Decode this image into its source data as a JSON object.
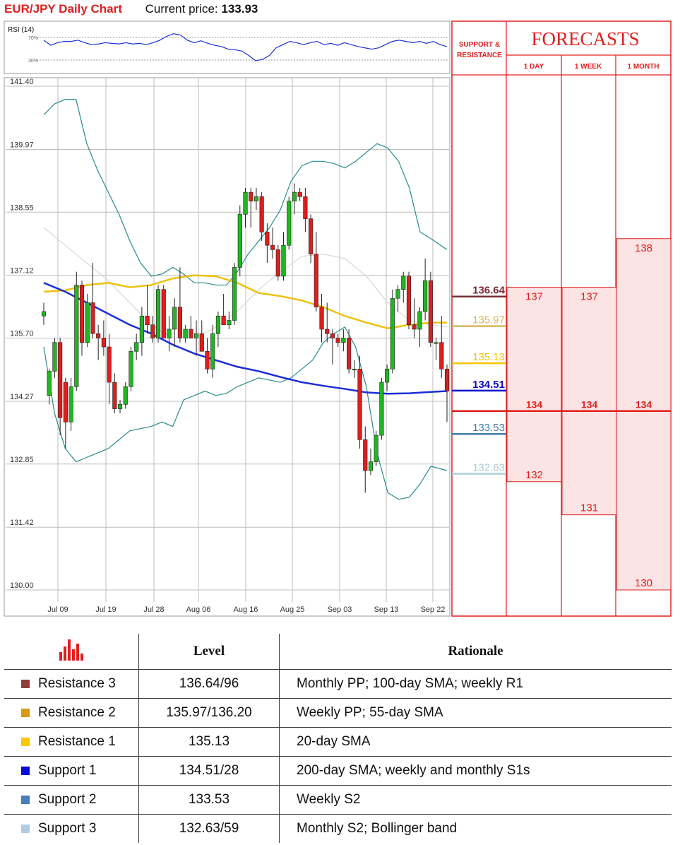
{
  "header": {
    "title": "EUR/JPY Daily Chart",
    "price_label": "Current price:",
    "price_value": "133.93"
  },
  "rsi": {
    "label": "RSI (14)",
    "upper": "70%",
    "lower": "30%"
  },
  "panel": {
    "sr_title_line1": "SUPPORT &",
    "sr_title_line2": "RESISTANCE",
    "forecasts_title": "FORECASTS",
    "col_1day": "1 DAY",
    "col_1week": "1 WEEK",
    "col_1month": "1 MONTH"
  },
  "colors": {
    "r3": "#7a2a35",
    "r2": "#d8b85e",
    "r1": "#f5c400",
    "s1": "#0a0ad0",
    "s2": "#3f7fa8",
    "s3": "#a9cfd8",
    "sma20": "#f0c010",
    "sma200": "#1c2ed8",
    "bollinger": "#2a8a8a",
    "up": "#22b522",
    "down": "#dd1e1e",
    "forecast": "#e0201e"
  },
  "chart_data": {
    "type": "candlestick",
    "title": "EUR/JPY Daily Chart",
    "ylim": [
      130.0,
      141.4
    ],
    "y_ticks": [
      "141.40",
      "139.97",
      "138.55",
      "137.12",
      "135.70",
      "134.27",
      "132.85",
      "131.42",
      "130.00"
    ],
    "x_ticks": [
      "Jul 09",
      "Jul 19",
      "Jul 28",
      "Aug 06",
      "Aug 16",
      "Aug 25",
      "Sep 03",
      "Sep 13",
      "Sep 22"
    ],
    "ohlc": [
      [
        136.2,
        136.5,
        136.0,
        136.3
      ],
      [
        134.4,
        135.0,
        134.2,
        134.95
      ],
      [
        134.95,
        135.7,
        134.8,
        135.6
      ],
      [
        135.6,
        135.7,
        133.5,
        133.9
      ],
      [
        134.7,
        134.8,
        133.2,
        133.8
      ],
      [
        133.8,
        134.8,
        133.6,
        134.6
      ],
      [
        134.6,
        137.2,
        134.5,
        136.9
      ],
      [
        136.9,
        137.0,
        135.3,
        135.6
      ],
      [
        135.6,
        136.7,
        135.5,
        136.5
      ],
      [
        136.5,
        137.4,
        135.7,
        135.8
      ],
      [
        135.8,
        136.0,
        135.2,
        135.7
      ],
      [
        135.7,
        136.1,
        135.3,
        135.5
      ],
      [
        135.5,
        135.8,
        134.2,
        134.7
      ],
      [
        134.7,
        134.9,
        134.0,
        134.1
      ],
      [
        134.1,
        134.3,
        134.0,
        134.2
      ],
      [
        134.2,
        134.7,
        134.1,
        134.6
      ],
      [
        134.6,
        135.5,
        134.5,
        135.4
      ],
      [
        135.4,
        135.8,
        135.2,
        135.6
      ],
      [
        135.6,
        136.4,
        135.3,
        136.2
      ],
      [
        136.2,
        136.9,
        135.8,
        136.0
      ],
      [
        136.0,
        136.2,
        135.6,
        135.7
      ],
      [
        135.7,
        136.9,
        135.6,
        136.8
      ],
      [
        136.8,
        136.9,
        135.7,
        135.7
      ],
      [
        135.7,
        136.2,
        135.4,
        135.9
      ],
      [
        135.9,
        136.6,
        135.5,
        136.4
      ],
      [
        136.4,
        137.3,
        135.6,
        135.7
      ],
      [
        135.7,
        136.0,
        135.6,
        135.9
      ],
      [
        135.9,
        136.2,
        135.7,
        135.7
      ],
      [
        135.7,
        136.1,
        135.3,
        135.8
      ],
      [
        135.8,
        136.1,
        135.4,
        135.4
      ],
      [
        135.4,
        135.7,
        134.9,
        135.0
      ],
      [
        135.0,
        136.0,
        134.8,
        135.8
      ],
      [
        135.8,
        136.3,
        135.5,
        136.2
      ],
      [
        136.2,
        136.7,
        136.0,
        136.0
      ],
      [
        136.0,
        136.3,
        135.9,
        136.1
      ],
      [
        136.1,
        137.4,
        136.0,
        137.3
      ],
      [
        137.3,
        138.7,
        137.1,
        138.5
      ],
      [
        138.5,
        139.1,
        138.2,
        139.0
      ],
      [
        139.0,
        139.1,
        138.2,
        138.8
      ],
      [
        138.8,
        139.1,
        138.6,
        138.9
      ],
      [
        138.9,
        139.0,
        137.9,
        138.1
      ],
      [
        138.1,
        138.3,
        137.4,
        137.8
      ],
      [
        137.8,
        138.2,
        137.5,
        137.7
      ],
      [
        137.7,
        137.8,
        137.0,
        137.1
      ],
      [
        137.1,
        138.1,
        137.0,
        137.8
      ],
      [
        137.8,
        138.9,
        137.7,
        138.8
      ],
      [
        138.8,
        139.2,
        138.5,
        139.0
      ],
      [
        139.0,
        139.1,
        138.8,
        138.9
      ],
      [
        138.9,
        139.1,
        138.1,
        138.4
      ],
      [
        138.4,
        138.5,
        137.4,
        137.6
      ],
      [
        137.6,
        138.1,
        136.3,
        136.4
      ],
      [
        136.4,
        136.7,
        135.6,
        135.9
      ],
      [
        135.9,
        136.5,
        135.6,
        135.8
      ],
      [
        135.8,
        135.9,
        135.1,
        135.7
      ],
      [
        135.7,
        135.8,
        135.5,
        135.6
      ],
      [
        135.6,
        135.9,
        135.4,
        135.7
      ],
      [
        135.7,
        135.9,
        134.9,
        135.0
      ],
      [
        135.0,
        135.2,
        134.8,
        135.0
      ],
      [
        135.0,
        135.3,
        133.2,
        133.4
      ],
      [
        133.4,
        133.7,
        132.2,
        132.7
      ],
      [
        132.7,
        133.2,
        132.6,
        132.9
      ],
      [
        132.9,
        133.6,
        132.8,
        133.5
      ],
      [
        133.5,
        134.8,
        133.4,
        134.7
      ],
      [
        134.7,
        135.1,
        134.5,
        135.0
      ],
      [
        135.0,
        136.8,
        134.9,
        136.6
      ],
      [
        136.6,
        136.9,
        136.3,
        136.8
      ],
      [
        136.8,
        137.2,
        136.5,
        137.1
      ],
      [
        137.1,
        137.2,
        135.9,
        136.0
      ],
      [
        136.0,
        136.6,
        135.7,
        135.9
      ],
      [
        135.9,
        136.4,
        135.5,
        136.3
      ],
      [
        136.3,
        137.5,
        136.1,
        137.0
      ],
      [
        137.0,
        137.2,
        135.5,
        135.6
      ],
      [
        135.6,
        135.7,
        135.2,
        135.6
      ],
      [
        135.6,
        136.2,
        134.8,
        135.0
      ],
      [
        135.0,
        135.1,
        133.8,
        134.5
      ]
    ],
    "sma200": [
      [
        0,
        136.95
      ],
      [
        4,
        136.75
      ],
      [
        8,
        136.5
      ],
      [
        12,
        136.25
      ],
      [
        16,
        136.0
      ],
      [
        20,
        135.8
      ],
      [
        24,
        135.55
      ],
      [
        28,
        135.35
      ],
      [
        32,
        135.2
      ],
      [
        36,
        135.05
      ],
      [
        40,
        134.95
      ],
      [
        44,
        134.82
      ],
      [
        48,
        134.7
      ],
      [
        52,
        134.62
      ],
      [
        56,
        134.55
      ],
      [
        60,
        134.47
      ],
      [
        64,
        134.44
      ],
      [
        68,
        134.45
      ],
      [
        72,
        134.48
      ],
      [
        75,
        134.5
      ]
    ],
    "sma20": [
      [
        0,
        136.75
      ],
      [
        4,
        136.78
      ],
      [
        8,
        136.9
      ],
      [
        12,
        136.95
      ],
      [
        16,
        136.85
      ],
      [
        20,
        136.9
      ],
      [
        24,
        137.05
      ],
      [
        28,
        137.12
      ],
      [
        32,
        137.1
      ],
      [
        36,
        136.95
      ],
      [
        40,
        136.72
      ],
      [
        44,
        136.65
      ],
      [
        48,
        136.55
      ],
      [
        52,
        136.4
      ],
      [
        56,
        136.2
      ],
      [
        60,
        136.05
      ],
      [
        64,
        135.92
      ],
      [
        68,
        136.0
      ],
      [
        72,
        136.05
      ],
      [
        75,
        136.05
      ]
    ],
    "sma_gray": [
      [
        0,
        138.2
      ],
      [
        4,
        137.8
      ],
      [
        8,
        137.4
      ],
      [
        12,
        137.0
      ],
      [
        16,
        136.5
      ],
      [
        20,
        136.0
      ],
      [
        24,
        135.7
      ],
      [
        28,
        135.7
      ],
      [
        32,
        135.95
      ],
      [
        36,
        136.3
      ],
      [
        40,
        136.8
      ],
      [
        44,
        137.2
      ],
      [
        48,
        137.55
      ],
      [
        52,
        137.6
      ],
      [
        56,
        137.5
      ],
      [
        60,
        137.1
      ],
      [
        64,
        136.5
      ],
      [
        68,
        136.1
      ],
      [
        72,
        136.0
      ],
      [
        75,
        135.95
      ]
    ],
    "bb_upper": [
      [
        0,
        140.75
      ],
      [
        2,
        141.0
      ],
      [
        4,
        141.1
      ],
      [
        6,
        141.1
      ],
      [
        8,
        140.1
      ],
      [
        10,
        139.5
      ],
      [
        12,
        139.0
      ],
      [
        14,
        138.5
      ],
      [
        16,
        137.9
      ],
      [
        18,
        137.4
      ],
      [
        20,
        137.1
      ],
      [
        22,
        137.15
      ],
      [
        24,
        137.3
      ],
      [
        26,
        137.15
      ],
      [
        28,
        136.95
      ],
      [
        30,
        136.95
      ],
      [
        32,
        136.9
      ],
      [
        34,
        136.9
      ],
      [
        36,
        137.2
      ],
      [
        38,
        137.6
      ],
      [
        40,
        137.9
      ],
      [
        42,
        138.2
      ],
      [
        44,
        138.6
      ],
      [
        46,
        139.25
      ],
      [
        48,
        139.6
      ],
      [
        50,
        139.7
      ],
      [
        52,
        139.7
      ],
      [
        54,
        139.65
      ],
      [
        56,
        139.55
      ],
      [
        58,
        139.7
      ],
      [
        60,
        139.9
      ],
      [
        62,
        140.1
      ],
      [
        64,
        140.0
      ],
      [
        66,
        139.7
      ],
      [
        68,
        139.1
      ],
      [
        70,
        138.1
      ],
      [
        72,
        137.95
      ],
      [
        75,
        137.7
      ]
    ],
    "bb_lower": [
      [
        0,
        135.5
      ],
      [
        2,
        134.0
      ],
      [
        4,
        133.2
      ],
      [
        6,
        132.9
      ],
      [
        8,
        133.0
      ],
      [
        10,
        133.1
      ],
      [
        12,
        133.2
      ],
      [
        14,
        133.4
      ],
      [
        16,
        133.6
      ],
      [
        18,
        133.65
      ],
      [
        20,
        133.7
      ],
      [
        22,
        133.8
      ],
      [
        24,
        133.7
      ],
      [
        26,
        134.3
      ],
      [
        28,
        134.4
      ],
      [
        30,
        134.5
      ],
      [
        32,
        134.4
      ],
      [
        34,
        134.45
      ],
      [
        36,
        134.6
      ],
      [
        38,
        134.7
      ],
      [
        40,
        134.8
      ],
      [
        42,
        134.75
      ],
      [
        44,
        134.7
      ],
      [
        46,
        134.8
      ],
      [
        48,
        135.0
      ],
      [
        50,
        135.2
      ],
      [
        52,
        135.6
      ],
      [
        54,
        135.8
      ],
      [
        56,
        135.95
      ],
      [
        58,
        135.5
      ],
      [
        60,
        134.6
      ],
      [
        62,
        133.1
      ],
      [
        64,
        132.2
      ],
      [
        66,
        132.05
      ],
      [
        68,
        132.1
      ],
      [
        70,
        132.4
      ],
      [
        72,
        132.8
      ],
      [
        75,
        132.7
      ]
    ],
    "rsi": [
      [
        0,
        62
      ],
      [
        2,
        54
      ],
      [
        4,
        58
      ],
      [
        6,
        60
      ],
      [
        8,
        60
      ],
      [
        10,
        62
      ],
      [
        12,
        58
      ],
      [
        14,
        55
      ],
      [
        16,
        56
      ],
      [
        18,
        58
      ],
      [
        20,
        57
      ],
      [
        22,
        56
      ],
      [
        24,
        58
      ],
      [
        26,
        56
      ],
      [
        28,
        57
      ],
      [
        30,
        55
      ],
      [
        32,
        58
      ],
      [
        34,
        62
      ],
      [
        36,
        68
      ],
      [
        38,
        72
      ],
      [
        40,
        70
      ],
      [
        42,
        62
      ],
      [
        44,
        58
      ],
      [
        46,
        61
      ],
      [
        48,
        57
      ],
      [
        50,
        54
      ],
      [
        52,
        52
      ],
      [
        54,
        48
      ],
      [
        56,
        47
      ],
      [
        58,
        45
      ],
      [
        60,
        38
      ],
      [
        62,
        30
      ],
      [
        64,
        32
      ],
      [
        66,
        38
      ],
      [
        68,
        50
      ],
      [
        70,
        55
      ],
      [
        72,
        60
      ],
      [
        74,
        58
      ],
      [
        76,
        55
      ],
      [
        78,
        58
      ],
      [
        80,
        60
      ],
      [
        82,
        55
      ],
      [
        84,
        57
      ],
      [
        86,
        54
      ],
      [
        88,
        58
      ],
      [
        90,
        55
      ],
      [
        92,
        52
      ],
      [
        94,
        50
      ],
      [
        96,
        48
      ],
      [
        98,
        50
      ],
      [
        100,
        55
      ],
      [
        102,
        60
      ],
      [
        104,
        62
      ],
      [
        106,
        60
      ],
      [
        108,
        58
      ],
      [
        110,
        60
      ],
      [
        112,
        57
      ],
      [
        114,
        60
      ],
      [
        116,
        55
      ],
      [
        118,
        52
      ]
    ],
    "levels": [
      {
        "key": "r3",
        "value": 136.64,
        "label": "136.64"
      },
      {
        "key": "r2",
        "value": 135.97,
        "label": "135.97"
      },
      {
        "key": "r1",
        "value": 135.13,
        "label": "135.13"
      },
      {
        "key": "s1",
        "value": 134.51,
        "label": "134.51"
      },
      {
        "key": "s2",
        "value": 133.53,
        "label": "133.53"
      },
      {
        "key": "s3",
        "value": 132.63,
        "label": "132.63"
      }
    ],
    "forecasts": {
      "current": 134,
      "current_label": "134",
      "1day": {
        "high": 137,
        "low": 132,
        "high_label": "137",
        "low_label": "132"
      },
      "1week": {
        "high": 137,
        "low": 131,
        "high_label": "137",
        "low_label": "131"
      },
      "1month": {
        "high": 138,
        "low": 130,
        "high_label": "138",
        "low_label": "130"
      }
    }
  },
  "table": {
    "header_level": "Level",
    "header_rationale": "Rationale",
    "rows": [
      {
        "name": "Resistance 3",
        "level": "136.64/96",
        "rationale": "Monthly PP; 100-day SMA; weekly R1",
        "color": "#923c3c"
      },
      {
        "name": "Resistance 2",
        "level": "135.97/136.20",
        "rationale": "Weekly PP; 55-day SMA",
        "color": "#d39b16"
      },
      {
        "name": "Resistance 1",
        "level": "135.13",
        "rationale": "20-day SMA",
        "color": "#f8c800"
      },
      {
        "name": "Support 1",
        "level": "134.51/28",
        "rationale": "200-day SMA; weekly and monthly S1s",
        "color": "#0a0ad8"
      },
      {
        "name": "Support 2",
        "level": "133.53",
        "rationale": "Weekly S2",
        "color": "#4a7db0"
      },
      {
        "name": "Support 3",
        "level": "132.63/59",
        "rationale": "Monthly S2; Bollinger band",
        "color": "#b4cbe6"
      }
    ]
  }
}
